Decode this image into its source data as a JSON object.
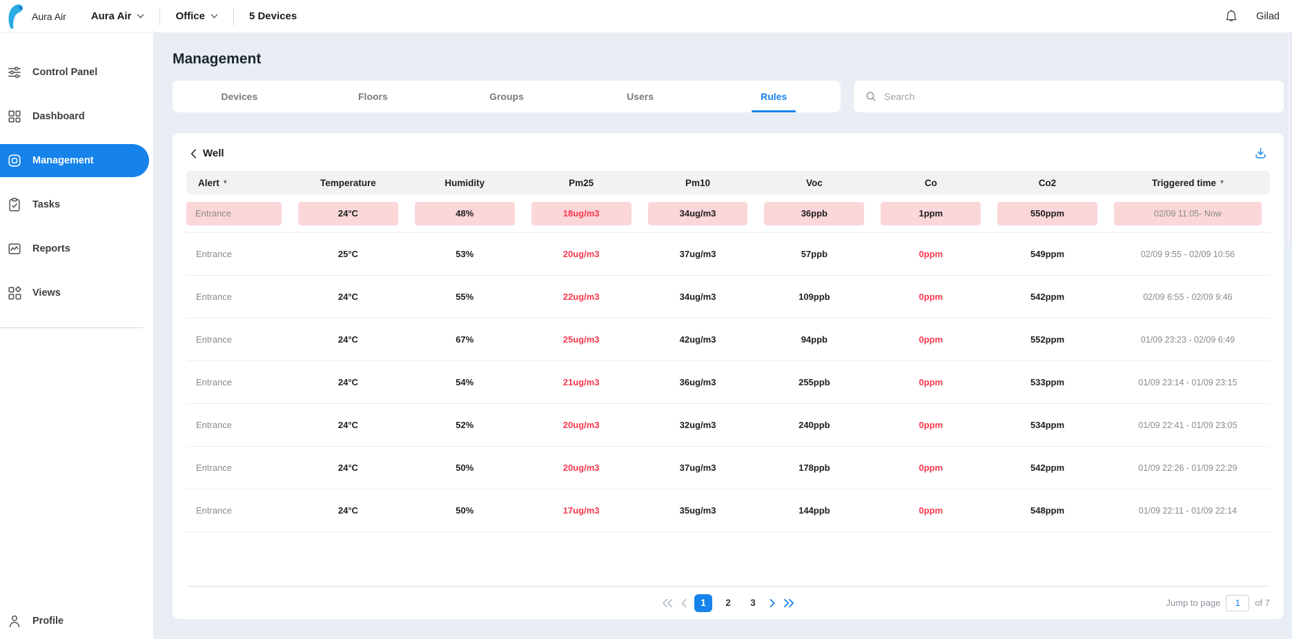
{
  "topbar": {
    "brand": "Aura Air",
    "org_selector": "Aura Air",
    "location_selector": "Office",
    "devices_count": "5 Devices",
    "user": "Gilad"
  },
  "sidebar": {
    "items": [
      {
        "label": "Control Panel",
        "icon": "sliders-icon",
        "active": false
      },
      {
        "label": "Dashboard",
        "icon": "dashboard-icon",
        "active": false
      },
      {
        "label": "Management",
        "icon": "management-icon",
        "active": true
      },
      {
        "label": "Tasks",
        "icon": "tasks-icon",
        "active": false
      },
      {
        "label": "Reports",
        "icon": "reports-icon",
        "active": false
      },
      {
        "label": "Views",
        "icon": "views-icon",
        "active": false
      }
    ],
    "profile_label": "Profile"
  },
  "page": {
    "title": "Management"
  },
  "tabs": [
    {
      "label": "Devices",
      "active": false
    },
    {
      "label": "Floors",
      "active": false
    },
    {
      "label": "Groups",
      "active": false
    },
    {
      "label": "Users",
      "active": false
    },
    {
      "label": "Rules",
      "active": true
    }
  ],
  "search": {
    "placeholder": "Search"
  },
  "rules_panel": {
    "group_name": "Well",
    "accent_color": "#1583EA",
    "alert_chip_color": "#FBD7D9",
    "alert_text_color": "#F8384E",
    "columns": [
      {
        "label": "Alert",
        "sortable": true
      },
      {
        "label": "Temperature",
        "sortable": false
      },
      {
        "label": "Humidity",
        "sortable": false
      },
      {
        "label": "Pm25",
        "sortable": false
      },
      {
        "label": "Pm10",
        "sortable": false
      },
      {
        "label": "Voc",
        "sortable": false
      },
      {
        "label": "Co",
        "sortable": false
      },
      {
        "label": "Co2",
        "sortable": false
      },
      {
        "label": "Triggered time",
        "sortable": true
      }
    ],
    "rows": [
      {
        "highlighted": true,
        "cells": [
          {
            "text": "Entrance",
            "tone": "muted"
          },
          {
            "text": "24°C",
            "tone": "dark"
          },
          {
            "text": "48%",
            "tone": "dark"
          },
          {
            "text": "18ug/m3",
            "tone": "red"
          },
          {
            "text": "34ug/m3",
            "tone": "dark"
          },
          {
            "text": "36ppb",
            "tone": "dark"
          },
          {
            "text": "1ppm",
            "tone": "dark"
          },
          {
            "text": "550ppm",
            "tone": "dark"
          },
          {
            "text": "02/09 11:05- Now",
            "tone": "muted"
          }
        ]
      },
      {
        "highlighted": false,
        "cells": [
          {
            "text": "Entrance",
            "tone": "muted"
          },
          {
            "text": "25°C",
            "tone": "dark"
          },
          {
            "text": "53%",
            "tone": "dark"
          },
          {
            "text": "20ug/m3",
            "tone": "red"
          },
          {
            "text": "37ug/m3",
            "tone": "dark"
          },
          {
            "text": "57ppb",
            "tone": "dark"
          },
          {
            "text": "0ppm",
            "tone": "red"
          },
          {
            "text": "549ppm",
            "tone": "dark"
          },
          {
            "text": "02/09 9:55 - 02/09 10:56",
            "tone": "muted"
          }
        ]
      },
      {
        "highlighted": false,
        "cells": [
          {
            "text": "Entrance",
            "tone": "muted"
          },
          {
            "text": "24°C",
            "tone": "dark"
          },
          {
            "text": "55%",
            "tone": "dark"
          },
          {
            "text": "22ug/m3",
            "tone": "red"
          },
          {
            "text": "34ug/m3",
            "tone": "dark"
          },
          {
            "text": "109ppb",
            "tone": "dark"
          },
          {
            "text": "0ppm",
            "tone": "red"
          },
          {
            "text": "542ppm",
            "tone": "dark"
          },
          {
            "text": "02/09 6:55 - 02/09 9:46",
            "tone": "muted"
          }
        ]
      },
      {
        "highlighted": false,
        "cells": [
          {
            "text": "Entrance",
            "tone": "muted"
          },
          {
            "text": "24°C",
            "tone": "dark"
          },
          {
            "text": "67%",
            "tone": "dark"
          },
          {
            "text": "25ug/m3",
            "tone": "red"
          },
          {
            "text": "42ug/m3",
            "tone": "dark"
          },
          {
            "text": "94ppb",
            "tone": "dark"
          },
          {
            "text": "0ppm",
            "tone": "red"
          },
          {
            "text": "552ppm",
            "tone": "dark"
          },
          {
            "text": "01/09 23:23 - 02/09 6:49",
            "tone": "muted"
          }
        ]
      },
      {
        "highlighted": false,
        "cells": [
          {
            "text": "Entrance",
            "tone": "muted"
          },
          {
            "text": "24°C",
            "tone": "dark"
          },
          {
            "text": "54%",
            "tone": "dark"
          },
          {
            "text": "21ug/m3",
            "tone": "red"
          },
          {
            "text": "36ug/m3",
            "tone": "dark"
          },
          {
            "text": "255ppb",
            "tone": "dark"
          },
          {
            "text": "0ppm",
            "tone": "red"
          },
          {
            "text": "533ppm",
            "tone": "dark"
          },
          {
            "text": "01/09 23:14 - 01/09 23:15",
            "tone": "muted"
          }
        ]
      },
      {
        "highlighted": false,
        "cells": [
          {
            "text": "Entrance",
            "tone": "muted"
          },
          {
            "text": "24°C",
            "tone": "dark"
          },
          {
            "text": "52%",
            "tone": "dark"
          },
          {
            "text": "20ug/m3",
            "tone": "red"
          },
          {
            "text": "32ug/m3",
            "tone": "dark"
          },
          {
            "text": "240ppb",
            "tone": "dark"
          },
          {
            "text": "0ppm",
            "tone": "red"
          },
          {
            "text": "534ppm",
            "tone": "dark"
          },
          {
            "text": "01/09 22:41 - 01/09 23:05",
            "tone": "muted"
          }
        ]
      },
      {
        "highlighted": false,
        "cells": [
          {
            "text": "Entrance",
            "tone": "muted"
          },
          {
            "text": "24°C",
            "tone": "dark"
          },
          {
            "text": "50%",
            "tone": "dark"
          },
          {
            "text": "20ug/m3",
            "tone": "red"
          },
          {
            "text": "37ug/m3",
            "tone": "dark"
          },
          {
            "text": "178ppb",
            "tone": "dark"
          },
          {
            "text": "0ppm",
            "tone": "red"
          },
          {
            "text": "542ppm",
            "tone": "dark"
          },
          {
            "text": "01/09 22:26 - 01/09 22:29",
            "tone": "muted"
          }
        ]
      },
      {
        "highlighted": false,
        "cells": [
          {
            "text": "Entrance",
            "tone": "muted"
          },
          {
            "text": "24°C",
            "tone": "dark"
          },
          {
            "text": "50%",
            "tone": "dark"
          },
          {
            "text": "17ug/m3",
            "tone": "red"
          },
          {
            "text": "35ug/m3",
            "tone": "dark"
          },
          {
            "text": "144ppb",
            "tone": "dark"
          },
          {
            "text": "0ppm",
            "tone": "red"
          },
          {
            "text": "548ppm",
            "tone": "dark"
          },
          {
            "text": "01/09 22:11 - 01/09 22:14",
            "tone": "muted"
          }
        ]
      }
    ],
    "pagination": {
      "pages": [
        "1",
        "2",
        "3"
      ],
      "active_page": "1",
      "jump_label": "Jump to page",
      "jump_value": "1",
      "total_label": "of 7"
    }
  }
}
